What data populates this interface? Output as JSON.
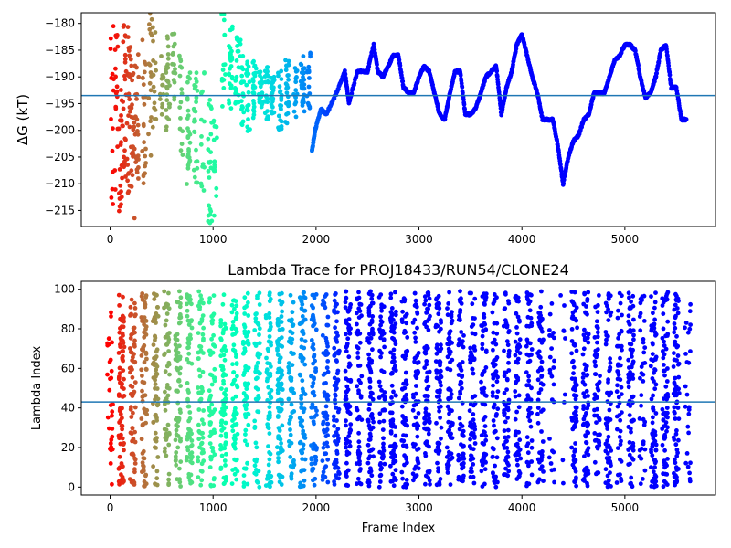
{
  "chart_data": [
    {
      "type": "scatter",
      "title": "",
      "xlabel": "",
      "ylabel": "ΔG (kT)",
      "xlim": [
        -280,
        5880
      ],
      "ylim": [
        -218,
        -178
      ],
      "xticks": [
        0,
        1000,
        2000,
        3000,
        4000,
        5000
      ],
      "yticks": [
        -180,
        -185,
        -190,
        -195,
        -200,
        -205,
        -210,
        -215
      ],
      "hline": -193.5,
      "hline_color": "#1f77b4",
      "colormap": "rainbow (red at frame 0 through violet at late frames)",
      "marker_color": "#8000ff",
      "trace_keypoints": {
        "x": [
          1960,
          1990,
          2050,
          2100,
          2200,
          2280,
          2320,
          2400,
          2500,
          2560,
          2600,
          2650,
          2700,
          2750,
          2800,
          2850,
          2900,
          2950,
          3000,
          3050,
          3100,
          3150,
          3200,
          3250,
          3300,
          3350,
          3400,
          3450,
          3500,
          3550,
          3600,
          3650,
          3700,
          3750,
          3800,
          3850,
          3900,
          3950,
          4000,
          4050,
          4100,
          4150,
          4200,
          4250,
          4300,
          4350,
          4400,
          4450,
          4500,
          4550,
          4600,
          4650,
          4700,
          4750,
          4800,
          4850,
          4900,
          4950,
          5000,
          5050,
          5100,
          5150,
          5200,
          5250,
          5300,
          5350,
          5400,
          5450,
          5500,
          5550,
          5600
        ],
        "y": [
          -204,
          -200,
          -196,
          -197,
          -193,
          -189,
          -195,
          -189,
          -189,
          -184,
          -189,
          -190,
          -188,
          -186,
          -186,
          -192,
          -193,
          -193,
          -190,
          -188,
          -189,
          -193,
          -197,
          -198,
          -193,
          -189,
          -189,
          -197,
          -197,
          -196,
          -193,
          -190,
          -189,
          -188,
          -197,
          -192,
          -189,
          -184,
          -182,
          -186,
          -190,
          -193,
          -198,
          -198,
          -198,
          -203,
          -210,
          -205,
          -202,
          -201,
          -198,
          -197,
          -193,
          -193,
          -193,
          -190,
          -187,
          -186,
          -184,
          -184,
          -185,
          -190,
          -194,
          -193,
          -190,
          -185,
          -184,
          -192,
          -192,
          -198,
          -198
        ]
      }
    },
    {
      "type": "scatter",
      "title": "Lambda Trace for PROJ18433/RUN54/CLONE24",
      "xlabel": "Frame Index",
      "ylabel": "Lambda Index",
      "xlim": [
        -280,
        5880
      ],
      "ylim": [
        -4,
        104
      ],
      "xticks": [
        0,
        1000,
        2000,
        3000,
        4000,
        5000
      ],
      "yticks": [
        0,
        20,
        40,
        60,
        80,
        100
      ],
      "hline": 43,
      "hline_color": "#1f77b4",
      "colormap": "rainbow (red at frame 0 through violet at late frames)",
      "marker_color": "#8000ff",
      "point_range": {
        "x": [
          0,
          5600
        ],
        "y": [
          0,
          99
        ]
      }
    }
  ]
}
